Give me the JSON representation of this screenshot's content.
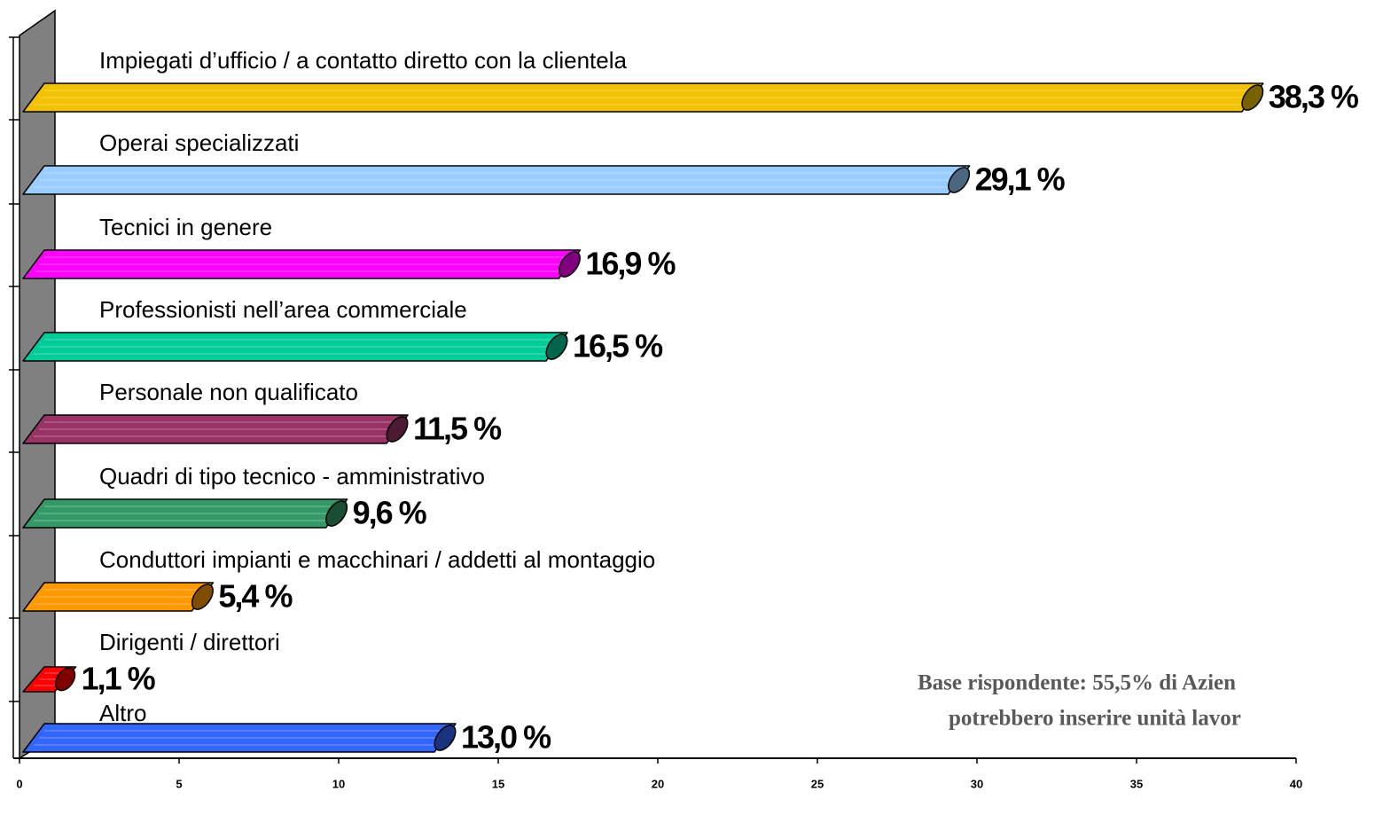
{
  "chart_data": {
    "type": "bar",
    "categories": [
      "Impiegati d’ufficio / a contatto diretto con la clientela",
      "Operai specializzati",
      "Tecnici in genere",
      "Professionisti nell’area commerciale",
      "Personale non qualificato",
      "Quadri di tipo tecnico - amministrativo",
      "Conduttori impianti e macchinari / addetti al montaggio",
      "Dirigenti / direttori",
      "Altro"
    ],
    "values": [
      38.3,
      29.1,
      16.9,
      16.5,
      11.5,
      9.6,
      5.4,
      1.1,
      13.0
    ],
    "value_labels": [
      "38,3 %",
      "29,1 %",
      "16,9 %",
      "16,5 %",
      "11,5 %",
      "9,6 %",
      "5,4 %",
      "1,1 %",
      "13,0 %"
    ],
    "colors": [
      "#f2c200",
      "#99ccff",
      "#ff00ff",
      "#00cc99",
      "#993366",
      "#339966",
      "#ff9900",
      "#ff0000",
      "#3366ff"
    ],
    "xlim": [
      0,
      40
    ],
    "xticks": [
      0,
      5,
      10,
      15,
      20,
      25,
      30,
      35,
      40
    ],
    "annotation": [
      "Base rispondente: 55,5% di Azien",
      "potrebbero inserire unità lavor"
    ]
  }
}
